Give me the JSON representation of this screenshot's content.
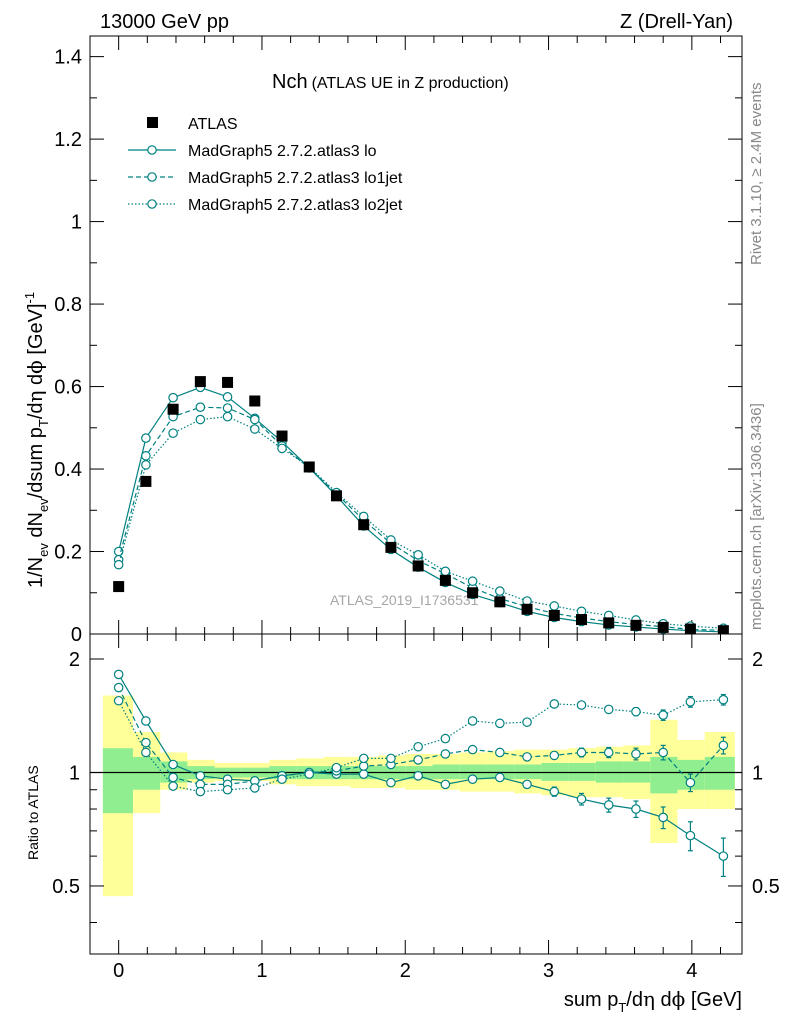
{
  "header": {
    "left": "13000 GeV pp",
    "right": "Z (Drell-Yan)"
  },
  "side_labels": {
    "rivet": "Rivet 3.1.10, ≥ 2.4M events",
    "mcplots": "mcplots.cern.ch [arXiv:1306.3436]"
  },
  "watermark": "ATLAS_2019_I1736531",
  "colors": {
    "mc": "#008080",
    "data": "#000000",
    "band_inner": "#90ee90",
    "band_outer": "#ffff99"
  },
  "chart_data": [
    {
      "type": "scatter",
      "title_main": "Nch",
      "title_sub": "(ATLAS UE in Z production)",
      "ylabel": "1/N_ev dN_ev/dsum p_T/dη dϕ [GeV]^-1",
      "xlim": [
        -0.2,
        4.35
      ],
      "ylim": [
        0,
        1.45
      ],
      "yticks": [
        "0",
        "0.2",
        "0.4",
        "0.6",
        "0.8",
        "1",
        "1.2",
        "1.4"
      ],
      "x": [
        0,
        0.19,
        0.38,
        0.57,
        0.76,
        0.95,
        1.14,
        1.33,
        1.52,
        1.71,
        1.9,
        2.09,
        2.28,
        2.47,
        2.66,
        2.85,
        3.04,
        3.23,
        3.42,
        3.61,
        3.8,
        3.99,
        4.22
      ],
      "data": {
        "name": "ATLAS",
        "values": [
          0.115,
          0.37,
          0.545,
          0.612,
          0.61,
          0.565,
          0.48,
          0.405,
          0.335,
          0.265,
          0.21,
          0.165,
          0.13,
          0.1,
          0.078,
          0.06,
          0.045,
          0.035,
          0.027,
          0.021,
          0.016,
          0.012,
          0.008
        ]
      },
      "series": [
        {
          "name": "MadGraph5 2.7.2.atlas3 lo",
          "style": "solid",
          "values": [
            0.2,
            0.475,
            0.573,
            0.598,
            0.575,
            0.523,
            0.466,
            0.403,
            0.335,
            0.262,
            0.205,
            0.162,
            0.125,
            0.096,
            0.076,
            0.055,
            0.04,
            0.03,
            0.022,
            0.017,
            0.012,
            0.008,
            0.005
          ]
        },
        {
          "name": "MadGraph5 2.7.2.atlas3 lo1jet",
          "style": "dashed",
          "values": [
            0.18,
            0.432,
            0.527,
            0.55,
            0.548,
            0.52,
            0.456,
            0.403,
            0.34,
            0.276,
            0.22,
            0.178,
            0.146,
            0.112,
            0.086,
            0.066,
            0.05,
            0.039,
            0.03,
            0.023,
            0.018,
            0.011,
            0.009
          ]
        },
        {
          "name": "MadGraph5 2.7.2.atlas3 lo2jet",
          "style": "dotted",
          "values": [
            0.168,
            0.41,
            0.487,
            0.52,
            0.527,
            0.497,
            0.45,
            0.405,
            0.343,
            0.285,
            0.228,
            0.192,
            0.152,
            0.128,
            0.104,
            0.08,
            0.068,
            0.055,
            0.045,
            0.034,
            0.025,
            0.019,
            0.014
          ]
        }
      ]
    },
    {
      "type": "scatter",
      "ylabel": "Ratio to ATLAS",
      "xlabel": "sum p_T/dη dϕ [GeV]",
      "xlim": [
        -0.2,
        4.35
      ],
      "ylim": [
        0.33,
        2.33
      ],
      "yticks": [
        "0.5",
        "1",
        "2"
      ],
      "xticks": [
        "0",
        "1",
        "2",
        "3",
        "4"
      ],
      "x": [
        0,
        0.19,
        0.38,
        0.57,
        0.76,
        0.95,
        1.14,
        1.33,
        1.52,
        1.71,
        1.9,
        2.09,
        2.28,
        2.47,
        2.66,
        2.85,
        3.04,
        3.23,
        3.42,
        3.61,
        3.8,
        3.99,
        4.22
      ],
      "bins": [
        [
          -0.11,
          0.1
        ],
        [
          0.1,
          0.29
        ],
        [
          0.29,
          0.48
        ],
        [
          0.48,
          0.67
        ],
        [
          0.67,
          0.86
        ],
        [
          0.86,
          1.05
        ],
        [
          1.05,
          1.24
        ],
        [
          1.24,
          1.43
        ],
        [
          1.43,
          1.62
        ],
        [
          1.62,
          1.81
        ],
        [
          1.81,
          2.0
        ],
        [
          2.0,
          2.19
        ],
        [
          2.19,
          2.38
        ],
        [
          2.38,
          2.57
        ],
        [
          2.57,
          2.76
        ],
        [
          2.76,
          2.95
        ],
        [
          2.95,
          3.14
        ],
        [
          3.14,
          3.33
        ],
        [
          3.33,
          3.52
        ],
        [
          3.52,
          3.71
        ],
        [
          3.71,
          3.9
        ],
        [
          3.9,
          4.09
        ],
        [
          4.09,
          4.3
        ]
      ],
      "band_inner": [
        [
          0.78,
          1.16
        ],
        [
          0.9,
          1.1
        ],
        [
          0.94,
          1.07
        ],
        [
          0.96,
          1.04
        ],
        [
          0.97,
          1.03
        ],
        [
          0.97,
          1.03
        ],
        [
          0.96,
          1.04
        ],
        [
          0.96,
          1.04
        ],
        [
          0.96,
          1.04
        ],
        [
          0.96,
          1.04
        ],
        [
          0.96,
          1.04
        ],
        [
          0.96,
          1.04
        ],
        [
          0.96,
          1.05
        ],
        [
          0.96,
          1.05
        ],
        [
          0.96,
          1.05
        ],
        [
          0.96,
          1.05
        ],
        [
          0.95,
          1.06
        ],
        [
          0.95,
          1.06
        ],
        [
          0.94,
          1.07
        ],
        [
          0.94,
          1.07
        ],
        [
          0.88,
          1.1
        ],
        [
          0.9,
          1.08
        ],
        [
          0.9,
          1.1
        ]
      ],
      "band_outer": [
        [
          0.47,
          1.6
        ],
        [
          0.78,
          1.28
        ],
        [
          0.9,
          1.13
        ],
        [
          0.94,
          1.08
        ],
        [
          0.95,
          1.06
        ],
        [
          0.95,
          1.06
        ],
        [
          0.93,
          1.08
        ],
        [
          0.92,
          1.09
        ],
        [
          0.92,
          1.1
        ],
        [
          0.91,
          1.1
        ],
        [
          0.91,
          1.11
        ],
        [
          0.9,
          1.12
        ],
        [
          0.9,
          1.12
        ],
        [
          0.89,
          1.13
        ],
        [
          0.89,
          1.14
        ],
        [
          0.88,
          1.15
        ],
        [
          0.87,
          1.15
        ],
        [
          0.86,
          1.16
        ],
        [
          0.86,
          1.17
        ],
        [
          0.85,
          1.18
        ],
        [
          0.65,
          1.38
        ],
        [
          0.8,
          1.22
        ],
        [
          0.8,
          1.28
        ]
      ],
      "series": [
        {
          "name": "MadGraph5 2.7.2.atlas3 lo",
          "style": "solid",
          "values": [
            1.82,
            1.37,
            1.05,
            0.98,
            0.96,
            0.95,
            0.98,
            1.0,
            0.99,
            0.99,
            0.94,
            0.98,
            0.93,
            0.96,
            0.97,
            0.93,
            0.89,
            0.85,
            0.82,
            0.8,
            0.76,
            0.68,
            0.6
          ],
          "errors": [
            0,
            0,
            0,
            0,
            0,
            0,
            0,
            0,
            0,
            0,
            0,
            0,
            0,
            0,
            0,
            0.02,
            0.025,
            0.03,
            0.035,
            0.04,
            0.05,
            0.06,
            0.07
          ]
        },
        {
          "name": "MadGraph5 2.7.2.atlas3 lo1jet",
          "style": "dashed",
          "values": [
            1.68,
            1.2,
            0.97,
            0.93,
            0.93,
            0.95,
            0.98,
            1.0,
            1.01,
            1.04,
            1.05,
            1.08,
            1.12,
            1.15,
            1.13,
            1.1,
            1.11,
            1.13,
            1.13,
            1.12,
            1.13,
            0.94,
            1.18
          ],
          "errors": [
            0,
            0,
            0,
            0,
            0,
            0,
            0,
            0,
            0,
            0,
            0,
            0,
            0,
            0,
            0,
            0.02,
            0.025,
            0.03,
            0.035,
            0.04,
            0.05,
            0.05,
            0.06
          ]
        },
        {
          "name": "MadGraph5 2.7.2.atlas3 lo2jet",
          "style": "dotted",
          "values": [
            1.55,
            1.13,
            0.92,
            0.89,
            0.9,
            0.91,
            0.96,
            0.99,
            1.03,
            1.09,
            1.09,
            1.17,
            1.23,
            1.37,
            1.35,
            1.36,
            1.52,
            1.51,
            1.47,
            1.45,
            1.42,
            1.54,
            1.56
          ],
          "errors": [
            0,
            0,
            0,
            0,
            0,
            0,
            0,
            0,
            0,
            0,
            0,
            0,
            0,
            0,
            0,
            0.02,
            0.025,
            0.03,
            0.03,
            0.035,
            0.045,
            0.05,
            0.05
          ]
        }
      ]
    }
  ]
}
